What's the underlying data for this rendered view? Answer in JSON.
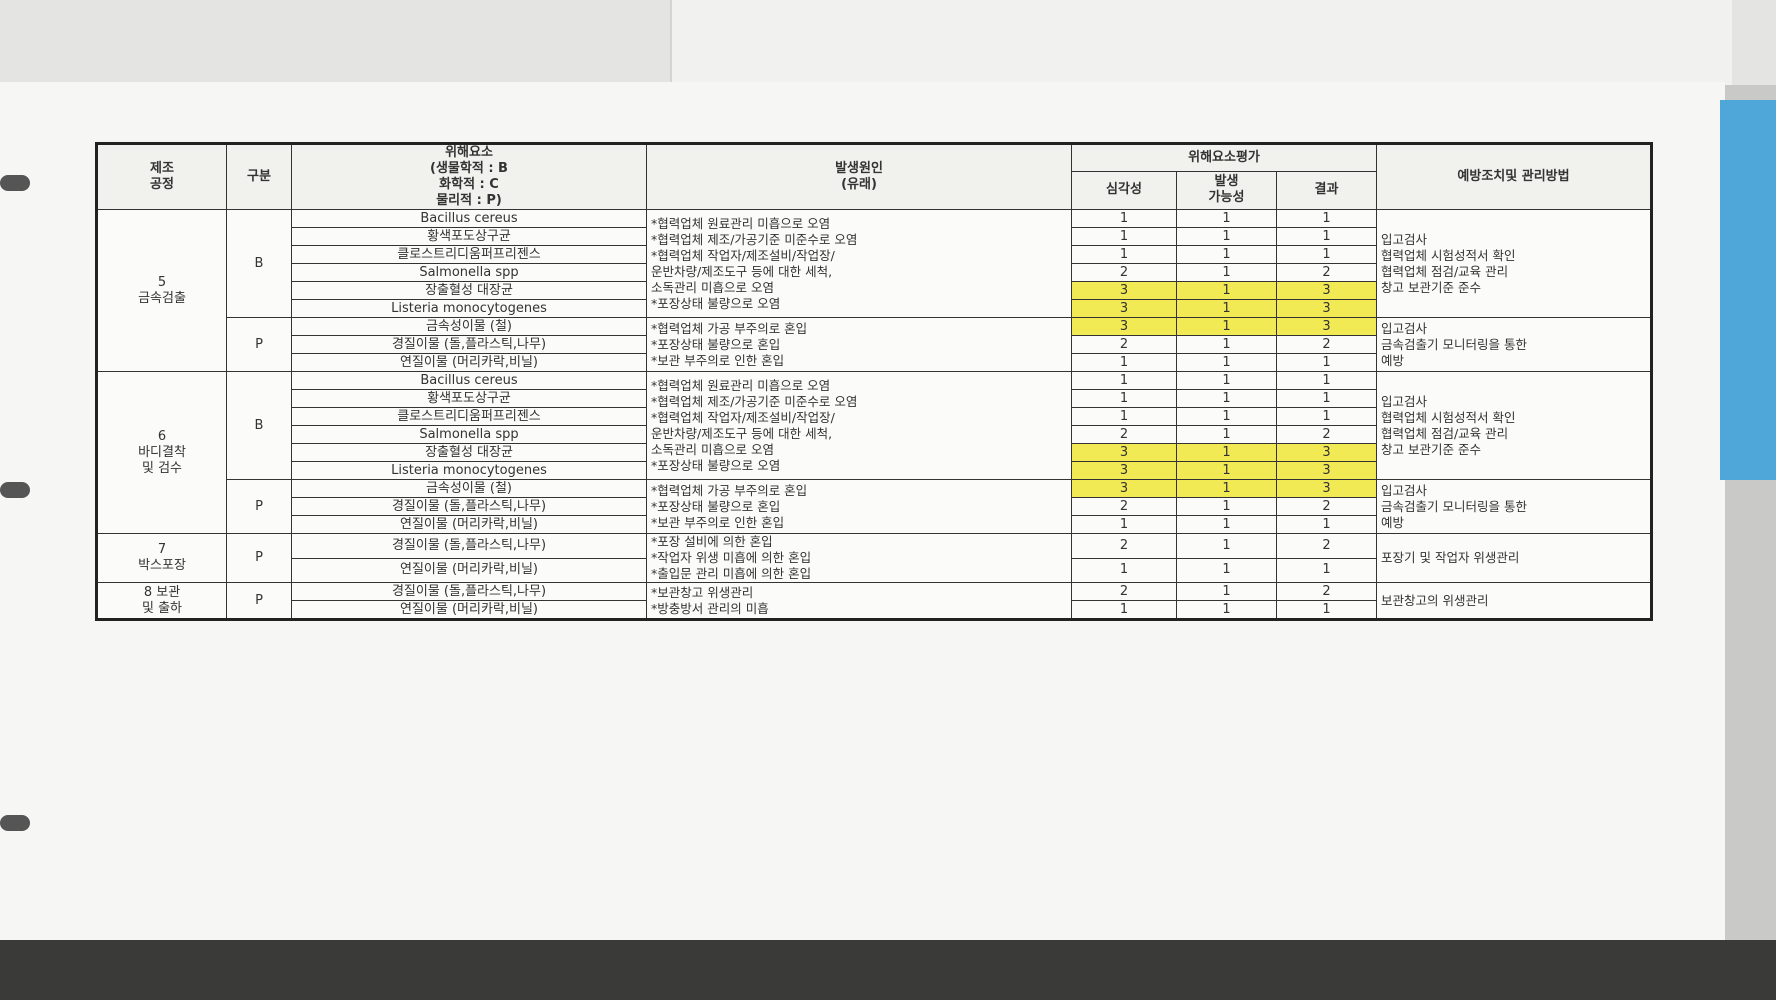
{
  "columns": {
    "process": [
      "제조",
      "공정"
    ],
    "category": "구분",
    "hazard": [
      "위해요소",
      "(생물학적 : B",
      "화학적 : C",
      "물리적 : P)"
    ],
    "cause": [
      "발생원인",
      "(유래)"
    ],
    "evaluation": "위해요소평가",
    "severity": "심각성",
    "likelihood": [
      "발생",
      "가능성"
    ],
    "result": "결과",
    "prevention": "예방조치및 관리방법"
  },
  "highlight_color": "#f2ea55",
  "processes": [
    {
      "name": [
        "5",
        "금속검출"
      ],
      "groups": [
        {
          "category": "B",
          "hazards": [
            {
              "name": "Bacillus cereus",
              "severity": 1,
              "likelihood": 1,
              "result": 1,
              "highlight": false
            },
            {
              "name": "황색포도상구균",
              "severity": 1,
              "likelihood": 1,
              "result": 1,
              "highlight": false
            },
            {
              "name": "클로스트리디움퍼프리젠스",
              "severity": 1,
              "likelihood": 1,
              "result": 1,
              "highlight": false
            },
            {
              "name": "Salmonella spp",
              "severity": 2,
              "likelihood": 1,
              "result": 2,
              "highlight": false
            },
            {
              "name": "장출혈성 대장균",
              "severity": 3,
              "likelihood": 1,
              "result": 3,
              "highlight": true
            },
            {
              "name": "Listeria monocytogenes",
              "severity": 3,
              "likelihood": 1,
              "result": 3,
              "highlight": true
            }
          ],
          "causes": [
            "*협력업체 원료관리 미흡으로 오염",
            "*협력업체 제조/가공기준 미준수로 오염",
            "*협력업체 작업자/제조설비/작업장/",
            "운반차량/제조도구 등에 대한 세척,",
            "소독관리 미흡으로 오염",
            "*포장상태 불량으로 오염"
          ],
          "prevention": [
            "입고검사",
            "협력업체 시험성적서 확인",
            "협력업체 점검/교육 관리",
            "창고 보관기준 준수"
          ]
        },
        {
          "category": "P",
          "hazards": [
            {
              "name": "금속성이물 (철)",
              "severity": 3,
              "likelihood": 1,
              "result": 3,
              "highlight": true
            },
            {
              "name": "경질이물 (돌,플라스틱,나무)",
              "severity": 2,
              "likelihood": 1,
              "result": 2,
              "highlight": false
            },
            {
              "name": "연질이물 (머리카락,비닐)",
              "severity": 1,
              "likelihood": 1,
              "result": 1,
              "highlight": false
            }
          ],
          "causes": [
            "*협력업체 가공 부주의로 혼입",
            "*포장상태 불량으로 혼입",
            "*보관 부주의로 인한 혼입"
          ],
          "prevention": [
            "입고검사",
            "금속검출기 모니터링을 통한",
            "예방"
          ]
        }
      ]
    },
    {
      "name": [
        "6",
        "바디결착",
        "및 검수"
      ],
      "groups": [
        {
          "category": "B",
          "hazards": [
            {
              "name": "Bacillus cereus",
              "severity": 1,
              "likelihood": 1,
              "result": 1,
              "highlight": false
            },
            {
              "name": "황색포도상구균",
              "severity": 1,
              "likelihood": 1,
              "result": 1,
              "highlight": false
            },
            {
              "name": "클로스트리디움퍼프리젠스",
              "severity": 1,
              "likelihood": 1,
              "result": 1,
              "highlight": false
            },
            {
              "name": "Salmonella spp",
              "severity": 2,
              "likelihood": 1,
              "result": 2,
              "highlight": false
            },
            {
              "name": "장출혈성 대장균",
              "severity": 3,
              "likelihood": 1,
              "result": 3,
              "highlight": true
            },
            {
              "name": "Listeria monocytogenes",
              "severity": 3,
              "likelihood": 1,
              "result": 3,
              "highlight": true
            }
          ],
          "causes": [
            "*협력업체 원료관리 미흡으로 오염",
            "*협력업체 제조/가공기준 미준수로 오염",
            "*협력업체 작업자/제조설비/작업장/",
            "운반차량/제조도구 등에 대한 세척,",
            "소독관리 미흡으로 오염",
            "*포장상태 불량으로 오염"
          ],
          "prevention": [
            "입고검사",
            "협력업체 시험성적서 확인",
            "협력업체 점검/교육 관리",
            "창고 보관기준 준수"
          ]
        },
        {
          "category": "P",
          "hazards": [
            {
              "name": "금속성이물 (철)",
              "severity": 3,
              "likelihood": 1,
              "result": 3,
              "highlight": true
            },
            {
              "name": "경질이물 (돌,플라스틱,나무)",
              "severity": 2,
              "likelihood": 1,
              "result": 2,
              "highlight": false
            },
            {
              "name": "연질이물 (머리카락,비닐)",
              "severity": 1,
              "likelihood": 1,
              "result": 1,
              "highlight": false
            }
          ],
          "causes": [
            "*협력업체 가공 부주의로 혼입",
            "*포장상태 불량으로 혼입",
            "*보관 부주의로 인한 혼입"
          ],
          "prevention": [
            "입고검사",
            "금속검출기 모니터링을 통한",
            "예방"
          ]
        }
      ]
    },
    {
      "name": [
        "7",
        "박스포장"
      ],
      "groups": [
        {
          "category": "P",
          "hazards": [
            {
              "name": "경질이물 (돌,플라스틱,나무)",
              "severity": 2,
              "likelihood": 1,
              "result": 2,
              "highlight": false
            },
            {
              "name": "연질이물 (머리카락,비닐)",
              "severity": 1,
              "likelihood": 1,
              "result": 1,
              "highlight": false
            }
          ],
          "causes": [
            "*포장 설비에 의한 혼입",
            "*작업자 위생 미흡에 의한 혼입",
            "*출입문 관리 미흡에 의한 혼입"
          ],
          "prevention": [
            "포장기 및 작업자 위생관리"
          ]
        }
      ]
    },
    {
      "name": [
        "8 보관",
        "및 출하"
      ],
      "groups": [
        {
          "category": "P",
          "hazards": [
            {
              "name": "경질이물 (돌,플라스틱,나무)",
              "severity": 2,
              "likelihood": 1,
              "result": 2,
              "highlight": false
            },
            {
              "name": "연질이물 (머리카락,비닐)",
              "severity": 1,
              "likelihood": 1,
              "result": 1,
              "highlight": false
            }
          ],
          "causes": [
            "*보관창고 위생관리",
            "*방충방서 관리의 미흡"
          ],
          "prevention": [
            "보관창고의 위생관리"
          ]
        }
      ]
    }
  ]
}
